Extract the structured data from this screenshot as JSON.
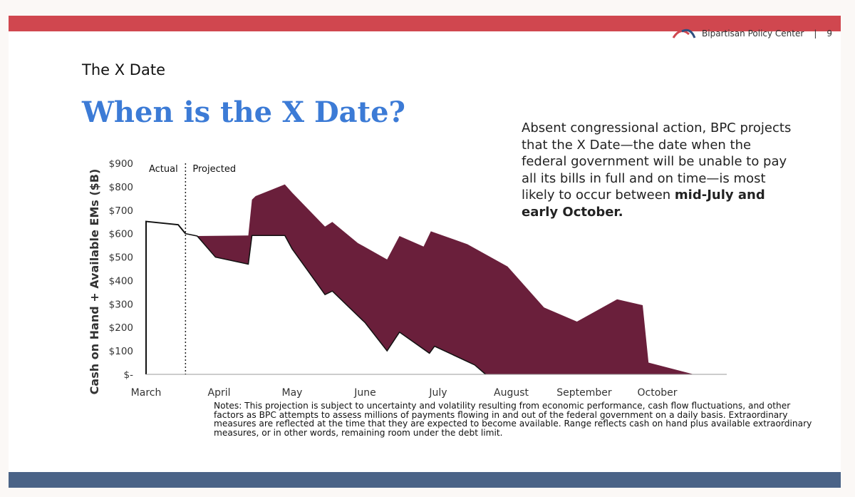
{
  "header": {
    "org_name": "Bipartisan Policy Center",
    "separator": "|",
    "page_number": "9"
  },
  "slide": {
    "section_title": "The X Date",
    "main_title": "When is the X Date?",
    "side_text_plain": "Absent congressional action, BPC projects that the X Date—the date when the federal government will be unable to pay all its bills in full and on time—is most likely to occur between ",
    "side_text_bold": "mid-July and early October.",
    "notes": "Notes: This projection is subject to uncertainty and volatility resulting from economic performance, cash flow fluctuations, and other factors as BPC attempts to assess millions of payments flowing in and out of the federal government on a daily basis. Extraordinary measures are reflected at the time that they are expected to become available. Range reflects cash on hand plus available extraordinary measures, or in other words, remaining room under the debt limit."
  },
  "colors": {
    "top_bar": "#d0474f",
    "bottom_bar": "#4a6387",
    "title_blue": "#3c7bd6",
    "range_fill": "#6a1f3b",
    "line": "#111111",
    "logo_red": "#d0474f",
    "logo_blue": "#2f4f7f"
  },
  "icons": {
    "logo": "bpc-arch-logo-icon"
  },
  "chart_data": {
    "type": "area",
    "title": "",
    "ylabel": "Cash on Hand + Available EMs ($B)",
    "xlabel": "",
    "ylim": [
      0,
      900
    ],
    "y_ticks": [
      0,
      100,
      200,
      300,
      400,
      500,
      600,
      700,
      800,
      900
    ],
    "y_tick_labels": [
      "$-",
      "$100",
      "$200",
      "$300",
      "$400",
      "$500",
      "$600",
      "$700",
      "$800",
      "$900"
    ],
    "x_ticks": [
      0,
      1,
      2,
      3,
      4,
      5,
      6,
      7
    ],
    "x_tick_labels": [
      "March",
      "April",
      "May",
      "June",
      "July",
      "August",
      "September",
      "October"
    ],
    "annotations": {
      "left": "Actual",
      "right": "Projected",
      "divider_x": 0.54
    },
    "actual_series": {
      "x": [
        0,
        0.0,
        0.44,
        0.54
      ],
      "y": [
        0,
        652,
        638,
        600
      ]
    },
    "range_upper": {
      "x": [
        0.54,
        0.7,
        1.4,
        1.45,
        1.5,
        1.9,
        2.0,
        2.45,
        2.55,
        2.9,
        3.3,
        3.47,
        3.8,
        3.9,
        4.4,
        4.95,
        5.45,
        5.9,
        6.45,
        6.8,
        6.88,
        7.5
      ],
      "y": [
        600,
        590,
        592,
        745,
        760,
        810,
        775,
        630,
        650,
        560,
        490,
        590,
        545,
        610,
        555,
        460,
        285,
        225,
        320,
        295,
        50,
        0
      ]
    },
    "range_lower": {
      "x": [
        0.54,
        0.7,
        0.95,
        1.4,
        1.45,
        1.9,
        2.0,
        2.45,
        2.55,
        3.0,
        3.3,
        3.47,
        3.88,
        3.95,
        4.5,
        4.65
      ],
      "y": [
        600,
        590,
        500,
        470,
        592,
        592,
        535,
        340,
        355,
        220,
        100,
        180,
        90,
        120,
        40,
        0
      ]
    }
  }
}
